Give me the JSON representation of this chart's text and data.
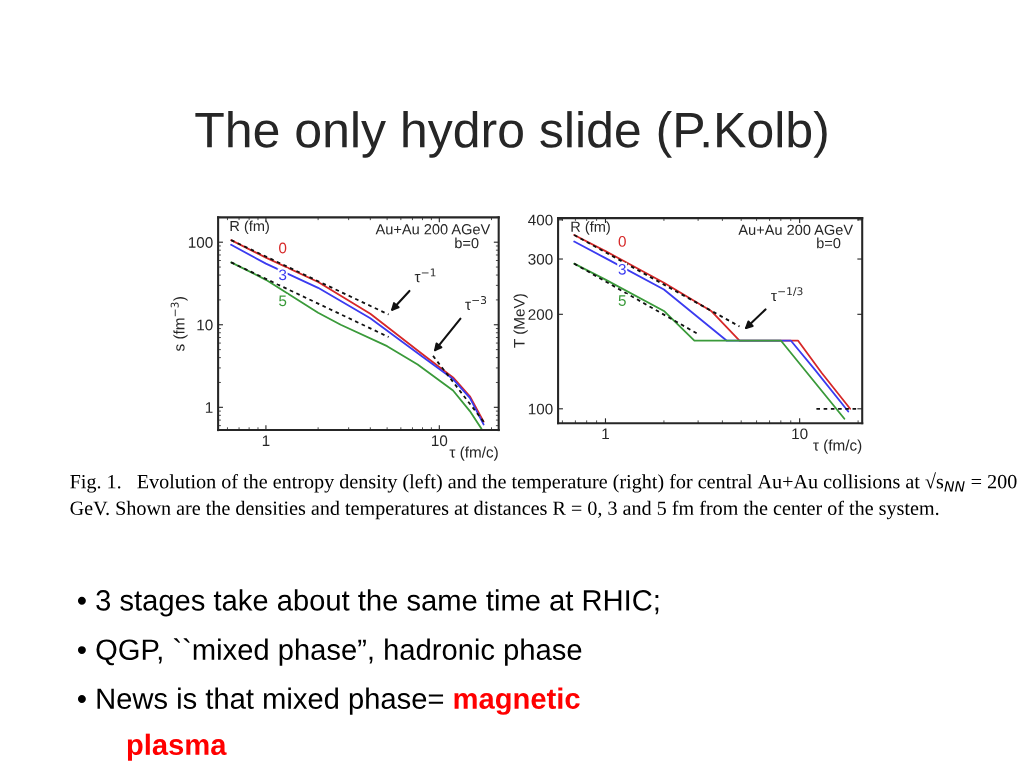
{
  "chart_data": [
    {
      "type": "line",
      "xlabel": "τ (fm/c)",
      "ylabel": "s (fm$^{−3}$)",
      "legend_title": "R (fm)",
      "log": "xy",
      "xlim": [
        0.53,
        22
      ],
      "ylim": [
        0.53,
        200
      ],
      "xticks": [
        1,
        10
      ],
      "yticks": [
        1,
        10,
        100
      ],
      "annotations": [
        "Au+Au 200 AGeV",
        "b=0",
        "τ$^{−1}$",
        "τ$^{−3}$"
      ],
      "series": [
        {
          "name": "0",
          "color": "#d62828",
          "x": [
            0.63,
            1,
            2,
            4,
            8,
            12,
            15,
            18
          ],
          "values": [
            106,
            65,
            33,
            13.6,
            4.4,
            2.3,
            1.36,
            0.67
          ]
        },
        {
          "name": "3",
          "color": "#3b3bf0",
          "x": [
            0.63,
            1,
            2,
            4,
            8,
            12,
            15,
            18
          ],
          "values": [
            93,
            55,
            28,
            12,
            4.1,
            2.2,
            1.3,
            0.62
          ]
        },
        {
          "name": "5",
          "color": "#3a9a3a",
          "x": [
            0.63,
            1,
            2,
            2.7,
            5,
            7.5,
            12,
            15,
            17.5
          ],
          "values": [
            57,
            35,
            14,
            10,
            5.5,
            3.3,
            1.6,
            0.9,
            0.55
          ]
        },
        {
          "color": "#111111",
          "line_style": "dashed",
          "x": [
            0.63,
            5.1
          ],
          "values": [
            106,
            13.3
          ]
        },
        {
          "color": "#111111",
          "line_style": "dashed",
          "x": [
            0.63,
            5.1
          ],
          "values": [
            57,
            7.1
          ]
        },
        {
          "color": "#111111",
          "line_style": "dashed",
          "x": [
            9.2,
            18.2
          ],
          "values": [
            4.2,
            0.65
          ]
        }
      ]
    },
    {
      "type": "line",
      "xlabel": "τ (fm/c)",
      "ylabel": "T (MeV)",
      "legend_title": "R (fm)",
      "log": "xy",
      "xlim": [
        0.57,
        21
      ],
      "ylim": [
        90,
        405
      ],
      "xticks": [
        1,
        10
      ],
      "yticks": [
        100,
        200,
        300,
        400
      ],
      "annotations": [
        "Au+Au 200 AGeV",
        "b=0",
        "τ$^{−1/3}$"
      ],
      "series": [
        {
          "name": "0",
          "color": "#d62828",
          "x": [
            0.69,
            1,
            2,
            3.5,
            4.9,
            9.8,
            13,
            18.2
          ],
          "values": [
            358,
            318,
            252,
            205,
            165,
            165,
            130,
            100
          ]
        },
        {
          "name": "3",
          "color": "#3b3bf0",
          "x": [
            0.69,
            1,
            2,
            4.2,
            9,
            12,
            17.8
          ],
          "values": [
            341,
            302,
            240,
            165,
            165,
            133,
            98
          ]
        },
        {
          "name": "5",
          "color": "#3a9a3a",
          "x": [
            0.69,
            1,
            2,
            2.87,
            8,
            17
          ],
          "values": [
            290,
            258,
            205,
            165,
            165,
            93
          ]
        },
        {
          "color": "#111111",
          "line_style": "dashed",
          "x": [
            0.69,
            4.9
          ],
          "values": [
            358,
            183
          ]
        },
        {
          "color": "#111111",
          "line_style": "dashed",
          "x": [
            0.69,
            3.0
          ],
          "values": [
            290,
            173
          ]
        },
        {
          "color": "#111111",
          "line_style": "dashed",
          "x": [
            12.2,
            20.3
          ],
          "values": [
            100,
            100
          ]
        }
      ]
    },
    {
      "type": "other",
      "title": "The only hydro slide (P.Kolb)",
      "annotations": [
        "Fig. 1.   Evolution of the entropy density (left) and the temperature (right) for central Au+Au collisions at √s$_{NN}$ = 200 GeV. Shown are the densities and temperatures at distances R = 0, 3 and 5 fm from the center of the system.",
        "• 3 stages take about the same time at RHIC;",
        "• QGP, ``mixed phase”, hadronic phase",
        "• News is that mixed phase= ",
        "magnetic",
        "plasma"
      ],
      "colors": [
        "#000000",
        "#000000",
        "#000000",
        "#000000",
        "#ff0000",
        "#ff0000"
      ]
    }
  ]
}
